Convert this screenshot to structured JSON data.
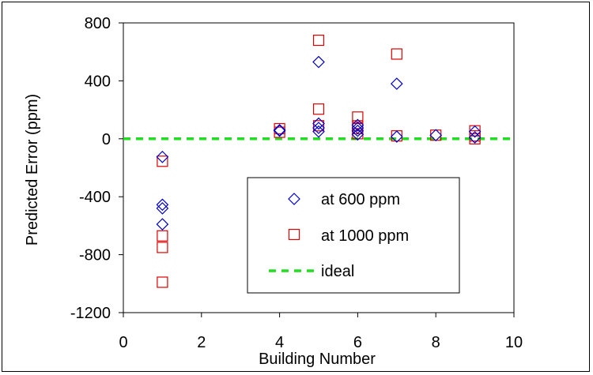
{
  "chart_data": {
    "type": "scatter",
    "title": "",
    "xlabel": "Building Number",
    "ylabel": "Predicted Error (ppm)",
    "xlim": [
      0,
      10
    ],
    "ylim": [
      -1200,
      800
    ],
    "xticks": [
      0,
      2,
      4,
      6,
      8,
      10
    ],
    "yticks": [
      800,
      400,
      0,
      -400,
      -800,
      -1200
    ],
    "grid": false,
    "legend_position": "center-right inside plot",
    "series": [
      {
        "name": "at 600 ppm",
        "marker": "diamond",
        "color": "#0000cc",
        "points": [
          [
            1,
            -125
          ],
          [
            1,
            -455
          ],
          [
            1,
            -480
          ],
          [
            1,
            -590
          ],
          [
            4,
            55
          ],
          [
            4,
            60
          ],
          [
            5,
            530
          ],
          [
            5,
            105
          ],
          [
            5,
            75
          ],
          [
            5,
            50
          ],
          [
            6,
            95
          ],
          [
            6,
            75
          ],
          [
            6,
            55
          ],
          [
            6,
            30
          ],
          [
            7,
            380
          ],
          [
            7,
            15
          ],
          [
            8,
            25
          ],
          [
            9,
            50
          ],
          [
            9,
            10
          ]
        ]
      },
      {
        "name": "at 1000 ppm",
        "marker": "square",
        "color": "#dd0000",
        "points": [
          [
            1,
            -155
          ],
          [
            1,
            -670
          ],
          [
            1,
            -750
          ],
          [
            1,
            -990
          ],
          [
            4,
            70
          ],
          [
            4,
            45
          ],
          [
            5,
            680
          ],
          [
            5,
            205
          ],
          [
            5,
            90
          ],
          [
            6,
            150
          ],
          [
            6,
            90
          ],
          [
            6,
            70
          ],
          [
            6,
            35
          ],
          [
            7,
            585
          ],
          [
            7,
            20
          ],
          [
            8,
            25
          ],
          [
            9,
            55
          ],
          [
            9,
            20
          ],
          [
            9,
            0
          ]
        ]
      },
      {
        "name": "ideal",
        "type": "line",
        "style": "dashed",
        "color": "#22dd22",
        "points": [
          [
            0,
            0
          ],
          [
            10,
            0
          ]
        ]
      }
    ]
  }
}
